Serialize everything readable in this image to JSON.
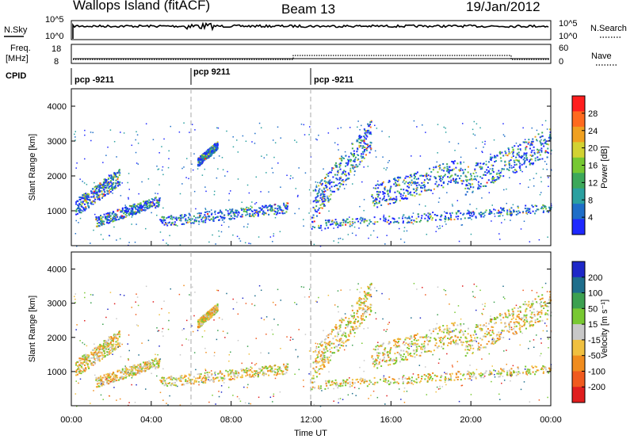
{
  "header": {
    "station": "Wallops Island (fitACF)",
    "beam": "Beam 13",
    "date": "19/Jan/2012"
  },
  "strip_labels": {
    "nsky": "N.Sky",
    "nsky_lo": "10^0",
    "nsky_hi": "10^5",
    "nsearch": "N.Search",
    "nsearch_lo": "10^0",
    "nsearch_hi": "10^5",
    "freq": "Freq.",
    "freq_unit": "[MHz]",
    "freq_lo": "8",
    "freq_hi": "18",
    "nave": "Nave",
    "nave_lo": "0",
    "nave_hi": "60",
    "cpid": "CPID"
  },
  "cpid_segments": [
    {
      "label": "pcp -9211",
      "start_h": 0
    },
    {
      "label": "pcp 9211",
      "start_h": 6
    },
    {
      "label": "pcp -9211",
      "start_h": 12
    }
  ],
  "chart_data": [
    {
      "type": "heatmap",
      "name": "power-panel",
      "ylabel": "Slant Range [km]",
      "ylim": [
        0,
        4500
      ],
      "xlim": [
        0,
        24
      ],
      "yticks": [
        1000,
        2000,
        3000,
        4000
      ],
      "colorbar": {
        "label": "Power [dB]",
        "ticks": [
          "4",
          "8",
          "12",
          "16",
          "20",
          "24",
          "28"
        ],
        "colors": [
          "#1e28ff",
          "#1e6ec8",
          "#2aa0a0",
          "#3ca85a",
          "#76c832",
          "#d2d232",
          "#f0a020",
          "#ff6a1e",
          "#ff1e1e"
        ]
      }
    },
    {
      "type": "heatmap",
      "name": "velocity-panel",
      "ylabel": "Slant Range [km]",
      "xlabel": "Time UT",
      "ylim": [
        0,
        4500
      ],
      "xlim": [
        0,
        24
      ],
      "yticks": [
        1000,
        2000,
        3000,
        4000
      ],
      "xticks": [
        "00:00",
        "04:00",
        "08:00",
        "12:00",
        "16:00",
        "20:00",
        "00:00"
      ],
      "colorbar": {
        "label": "Velocity [m s⁻¹]",
        "ticks": [
          "200",
          "100",
          "50",
          "15",
          "-15",
          "-50",
          "-100",
          "-200"
        ],
        "colors": [
          "#1e28c8",
          "#1e6e8c",
          "#3ca050",
          "#78c832",
          "#c8c8c8",
          "#f0c040",
          "#f08c1e",
          "#f05a1e",
          "#e01e1e"
        ]
      }
    }
  ]
}
